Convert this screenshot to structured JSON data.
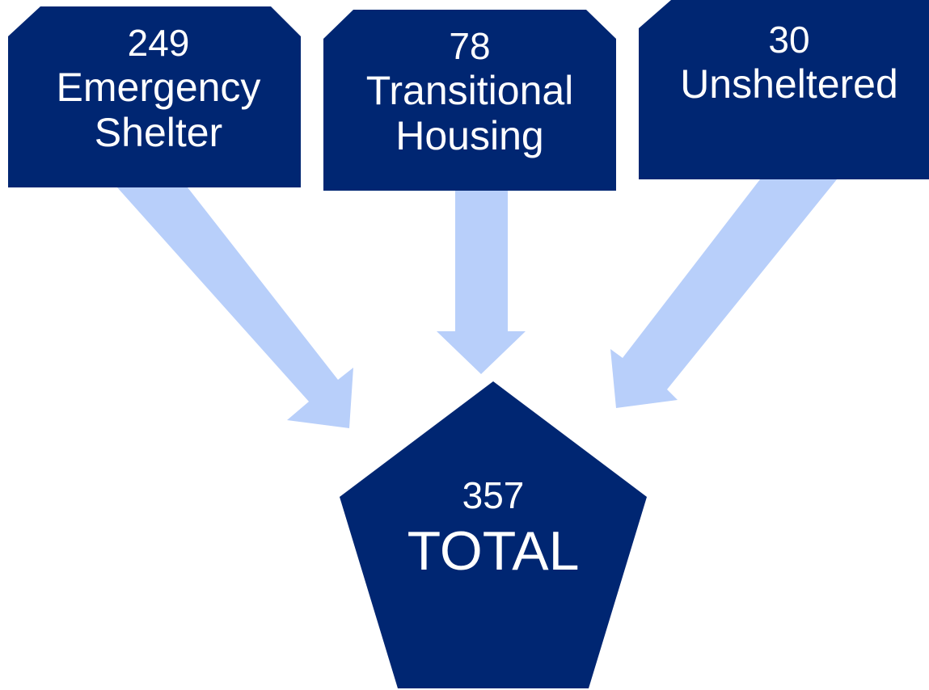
{
  "nodes": [
    {
      "value": 249,
      "label": [
        "Emergency",
        "Shelter"
      ]
    },
    {
      "value": 78,
      "label": [
        "Transitional",
        "Housing"
      ]
    },
    {
      "value": 30,
      "label": [
        "Unsheltered"
      ]
    }
  ],
  "total": {
    "value": 357,
    "label": "TOTAL"
  }
}
